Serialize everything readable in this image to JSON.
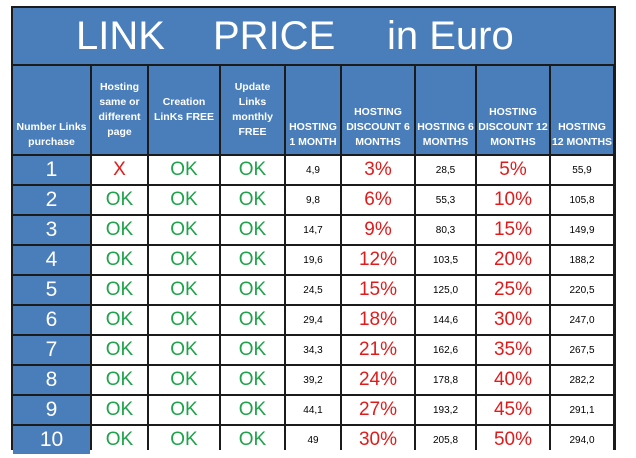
{
  "title": {
    "word1": "LINK",
    "word2": "PRICE",
    "word3": "in Euro"
  },
  "headers": [
    "Number Links purchase",
    "Hosting same or different page",
    "Creation LinKs FREE",
    "Update Links monthly FREE",
    "HOSTING 1 MONTH",
    "HOSTING DISCOUNT 6 MONTHS",
    "HOSTING 6 MONTHS",
    "HOSTING DISCOUNT 12 MONTHS",
    "HOSTING 12 MONTHS"
  ],
  "rows": [
    {
      "links": "1",
      "hosting_page": "X",
      "creation": "OK",
      "update": "OK",
      "hosting_1m": "4,9",
      "discount_6m": "3%",
      "hosting_6m": "28,5",
      "discount_12m": "5%",
      "hosting_12m": "55,9"
    },
    {
      "links": "2",
      "hosting_page": "OK",
      "creation": "OK",
      "update": "OK",
      "hosting_1m": "9,8",
      "discount_6m": "6%",
      "hosting_6m": "55,3",
      "discount_12m": "10%",
      "hosting_12m": "105,8"
    },
    {
      "links": "3",
      "hosting_page": "OK",
      "creation": "OK",
      "update": "OK",
      "hosting_1m": "14,7",
      "discount_6m": "9%",
      "hosting_6m": "80,3",
      "discount_12m": "15%",
      "hosting_12m": "149,9"
    },
    {
      "links": "4",
      "hosting_page": "OK",
      "creation": "OK",
      "update": "OK",
      "hosting_1m": "19,6",
      "discount_6m": "12%",
      "hosting_6m": "103,5",
      "discount_12m": "20%",
      "hosting_12m": "188,2"
    },
    {
      "links": "5",
      "hosting_page": "OK",
      "creation": "OK",
      "update": "OK",
      "hosting_1m": "24,5",
      "discount_6m": "15%",
      "hosting_6m": "125,0",
      "discount_12m": "25%",
      "hosting_12m": "220,5"
    },
    {
      "links": "6",
      "hosting_page": "OK",
      "creation": "OK",
      "update": "OK",
      "hosting_1m": "29,4",
      "discount_6m": "18%",
      "hosting_6m": "144,6",
      "discount_12m": "30%",
      "hosting_12m": "247,0"
    },
    {
      "links": "7",
      "hosting_page": "OK",
      "creation": "OK",
      "update": "OK",
      "hosting_1m": "34,3",
      "discount_6m": "21%",
      "hosting_6m": "162,6",
      "discount_12m": "35%",
      "hosting_12m": "267,5"
    },
    {
      "links": "8",
      "hosting_page": "OK",
      "creation": "OK",
      "update": "OK",
      "hosting_1m": "39,2",
      "discount_6m": "24%",
      "hosting_6m": "178,8",
      "discount_12m": "40%",
      "hosting_12m": "282,2"
    },
    {
      "links": "9",
      "hosting_page": "OK",
      "creation": "OK",
      "update": "OK",
      "hosting_1m": "44,1",
      "discount_6m": "27%",
      "hosting_6m": "193,2",
      "discount_12m": "45%",
      "hosting_12m": "291,1"
    },
    {
      "links": "10",
      "hosting_page": "OK",
      "creation": "OK",
      "update": "OK",
      "hosting_1m": "49",
      "discount_6m": "30%",
      "hosting_6m": "205,8",
      "discount_12m": "50%",
      "hosting_12m": "294,0"
    }
  ],
  "colors": {
    "header_blue": "#4a7ebb",
    "ok_green": "#1fa34a",
    "red": "#e01b1b",
    "grid": "#1b1b1b"
  }
}
